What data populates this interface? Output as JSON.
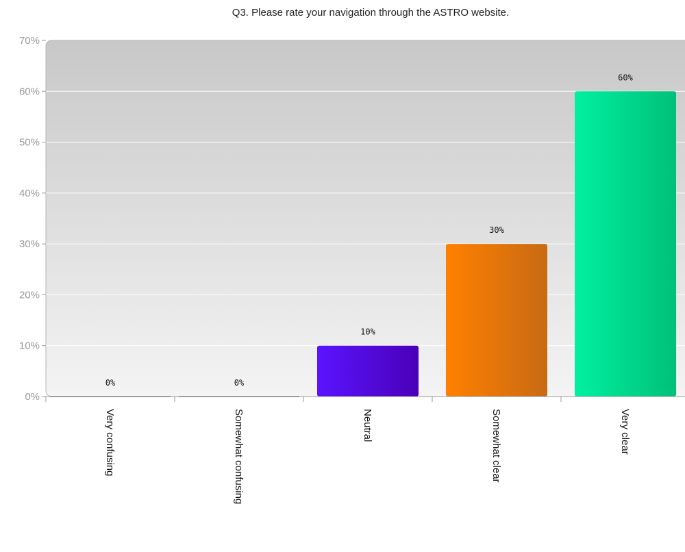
{
  "chart_data": {
    "type": "bar",
    "title": "Q3. Please rate your navigation through the ASTRO website.",
    "categories": [
      "Very confusing",
      "Somewhat confusing",
      "Neutral",
      "Somewhat clear",
      "Very clear"
    ],
    "values": [
      0,
      0,
      10,
      30,
      60
    ],
    "data_labels": [
      "0%",
      "0%",
      "10%",
      "30%",
      "60%"
    ],
    "y_ticks": [
      "0%",
      "10%",
      "20%",
      "30%",
      "40%",
      "50%",
      "60%",
      "70%"
    ],
    "ylim": [
      0,
      70
    ],
    "grid": true,
    "legend": "none",
    "bar_colors": [
      [
        "#7a6cff",
        "#4a2fd0"
      ],
      [
        "#7a6cff",
        "#4a2fd0"
      ],
      [
        "#5a14ff",
        "#4a00b8"
      ],
      [
        "#ff8000",
        "#c86a14"
      ],
      [
        "#00f0a0",
        "#00c07a"
      ]
    ],
    "plot_background": [
      "#c8c8c8",
      "#f4f4f4"
    ]
  }
}
